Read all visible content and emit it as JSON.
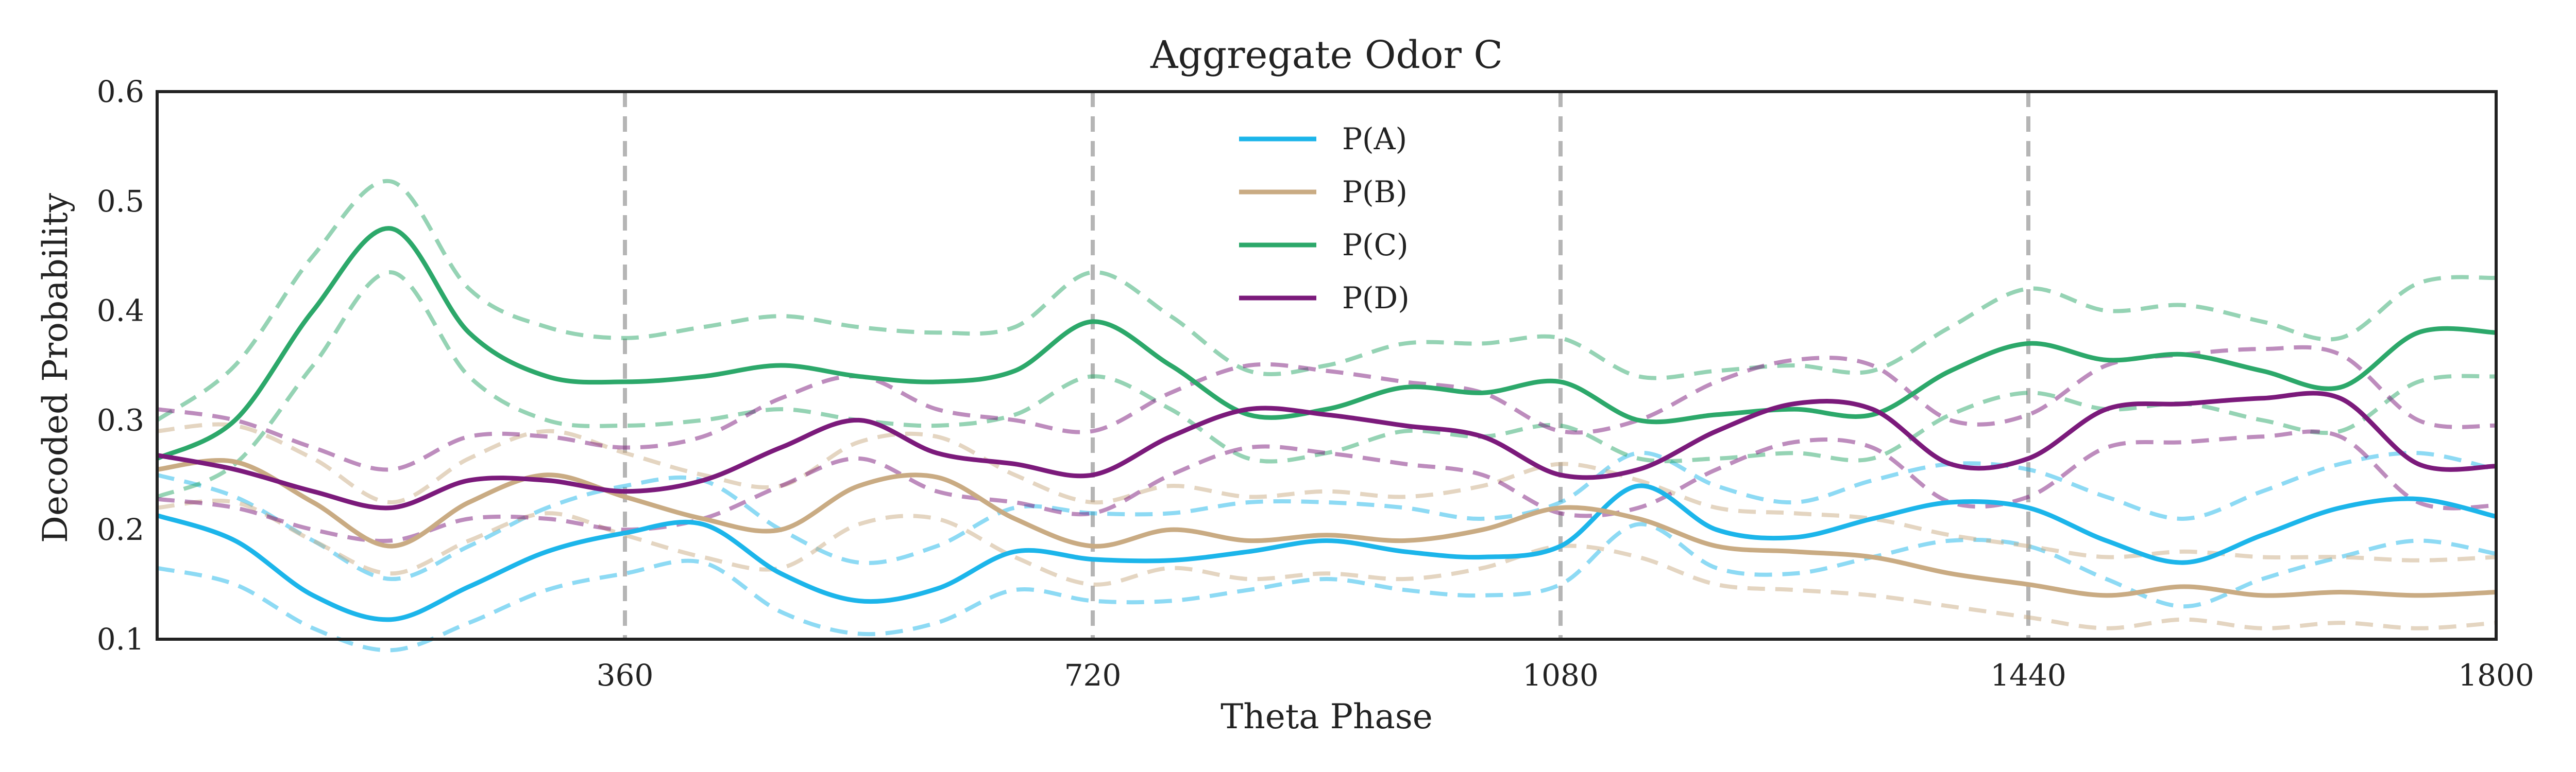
{
  "chart_data": {
    "type": "line",
    "title": "Aggregate Odor C",
    "xlabel": "Theta Phase",
    "ylabel": "Decoded Probability",
    "xlim": [
      0,
      1800
    ],
    "ylim": [
      0.1,
      0.6
    ],
    "xticks": [
      360,
      720,
      1080,
      1440,
      1800
    ],
    "yticks": [
      0.1,
      0.2,
      0.3,
      0.4,
      0.5,
      0.6
    ],
    "vlines": [
      360,
      720,
      1080,
      1440
    ],
    "grid": false,
    "legend_position": "top-center",
    "x": [
      0,
      60,
      120,
      180,
      240,
      300,
      360,
      420,
      480,
      540,
      600,
      660,
      720,
      780,
      840,
      900,
      960,
      1020,
      1080,
      1140,
      1200,
      1260,
      1320,
      1380,
      1440,
      1500,
      1560,
      1620,
      1680,
      1740,
      1800
    ],
    "series": [
      {
        "name": "P(A)",
        "color": "#1cb5ea",
        "values": [
          0.213,
          0.19,
          0.14,
          0.118,
          0.148,
          0.18,
          0.197,
          0.205,
          0.16,
          0.135,
          0.146,
          0.18,
          0.173,
          0.172,
          0.18,
          0.19,
          0.18,
          0.175,
          0.185,
          0.24,
          0.2,
          0.193,
          0.21,
          0.225,
          0.22,
          0.19,
          0.17,
          0.195,
          0.22,
          0.228,
          0.212
        ],
        "upper": [
          0.25,
          0.23,
          0.19,
          0.155,
          0.185,
          0.22,
          0.24,
          0.245,
          0.2,
          0.17,
          0.185,
          0.22,
          0.215,
          0.215,
          0.225,
          0.225,
          0.22,
          0.21,
          0.225,
          0.27,
          0.24,
          0.225,
          0.245,
          0.26,
          0.255,
          0.23,
          0.21,
          0.235,
          0.26,
          0.27,
          0.255
        ],
        "lower": [
          0.165,
          0.15,
          0.11,
          0.09,
          0.115,
          0.145,
          0.16,
          0.17,
          0.125,
          0.105,
          0.115,
          0.145,
          0.135,
          0.135,
          0.145,
          0.155,
          0.145,
          0.14,
          0.15,
          0.205,
          0.165,
          0.16,
          0.175,
          0.19,
          0.185,
          0.155,
          0.13,
          0.155,
          0.175,
          0.19,
          0.178
        ]
      },
      {
        "name": "P(B)",
        "color": "#c9ab83",
        "values": [
          0.255,
          0.262,
          0.225,
          0.185,
          0.225,
          0.25,
          0.23,
          0.21,
          0.2,
          0.24,
          0.248,
          0.21,
          0.185,
          0.2,
          0.19,
          0.195,
          0.19,
          0.2,
          0.22,
          0.21,
          0.185,
          0.18,
          0.175,
          0.16,
          0.15,
          0.14,
          0.148,
          0.14,
          0.143,
          0.14,
          0.143
        ],
        "upper": [
          0.29,
          0.295,
          0.265,
          0.225,
          0.265,
          0.29,
          0.27,
          0.25,
          0.24,
          0.28,
          0.285,
          0.25,
          0.225,
          0.24,
          0.23,
          0.235,
          0.23,
          0.24,
          0.26,
          0.245,
          0.22,
          0.215,
          0.21,
          0.195,
          0.185,
          0.175,
          0.18,
          0.175,
          0.175,
          0.172,
          0.175
        ],
        "lower": [
          0.22,
          0.225,
          0.19,
          0.16,
          0.19,
          0.215,
          0.195,
          0.175,
          0.165,
          0.205,
          0.21,
          0.175,
          0.15,
          0.165,
          0.155,
          0.16,
          0.155,
          0.165,
          0.185,
          0.175,
          0.15,
          0.145,
          0.14,
          0.13,
          0.12,
          0.11,
          0.118,
          0.11,
          0.115,
          0.11,
          0.115
        ]
      },
      {
        "name": "P(C)",
        "color": "#2ca86a",
        "values": [
          0.265,
          0.3,
          0.4,
          0.475,
          0.38,
          0.34,
          0.335,
          0.34,
          0.35,
          0.34,
          0.335,
          0.345,
          0.39,
          0.35,
          0.305,
          0.31,
          0.33,
          0.325,
          0.335,
          0.3,
          0.305,
          0.31,
          0.305,
          0.345,
          0.37,
          0.355,
          0.36,
          0.345,
          0.33,
          0.38,
          0.38
        ],
        "upper": [
          0.3,
          0.35,
          0.45,
          0.518,
          0.42,
          0.385,
          0.375,
          0.385,
          0.395,
          0.385,
          0.38,
          0.385,
          0.435,
          0.395,
          0.345,
          0.35,
          0.37,
          0.37,
          0.375,
          0.34,
          0.345,
          0.35,
          0.345,
          0.385,
          0.42,
          0.4,
          0.405,
          0.39,
          0.375,
          0.425,
          0.43
        ],
        "lower": [
          0.23,
          0.26,
          0.35,
          0.435,
          0.34,
          0.3,
          0.295,
          0.3,
          0.31,
          0.3,
          0.295,
          0.305,
          0.34,
          0.31,
          0.265,
          0.27,
          0.29,
          0.285,
          0.295,
          0.265,
          0.265,
          0.27,
          0.265,
          0.305,
          0.325,
          0.31,
          0.315,
          0.3,
          0.29,
          0.335,
          0.34
        ]
      },
      {
        "name": "P(D)",
        "color": "#7b1a7b",
        "values": [
          0.268,
          0.255,
          0.235,
          0.22,
          0.245,
          0.245,
          0.235,
          0.245,
          0.275,
          0.3,
          0.27,
          0.26,
          0.25,
          0.285,
          0.31,
          0.305,
          0.295,
          0.285,
          0.25,
          0.255,
          0.29,
          0.315,
          0.31,
          0.26,
          0.265,
          0.31,
          0.315,
          0.32,
          0.32,
          0.26,
          0.258
        ],
        "upper": [
          0.31,
          0.3,
          0.275,
          0.255,
          0.285,
          0.285,
          0.275,
          0.285,
          0.32,
          0.34,
          0.31,
          0.3,
          0.29,
          0.325,
          0.35,
          0.345,
          0.335,
          0.325,
          0.29,
          0.3,
          0.335,
          0.355,
          0.35,
          0.3,
          0.305,
          0.35,
          0.36,
          0.365,
          0.36,
          0.3,
          0.295
        ],
        "lower": [
          0.228,
          0.22,
          0.2,
          0.19,
          0.21,
          0.21,
          0.2,
          0.21,
          0.24,
          0.265,
          0.235,
          0.225,
          0.215,
          0.25,
          0.275,
          0.27,
          0.26,
          0.25,
          0.215,
          0.22,
          0.255,
          0.28,
          0.275,
          0.225,
          0.23,
          0.275,
          0.28,
          0.285,
          0.285,
          0.225,
          0.222
        ]
      }
    ]
  }
}
